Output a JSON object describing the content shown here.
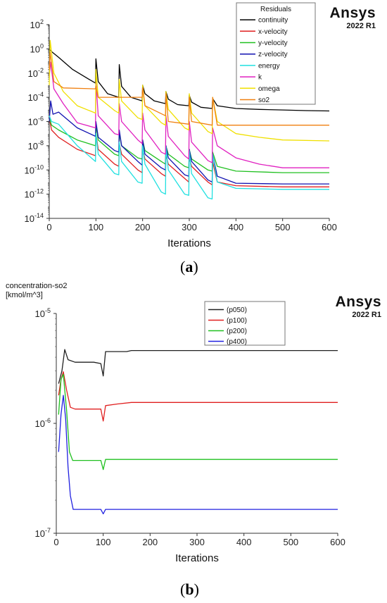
{
  "chart_data": [
    {
      "type": "line",
      "title": "",
      "xlabel": "Iterations",
      "ylabel": "",
      "yscale": "log",
      "xlim": [
        0,
        600
      ],
      "ylim": [
        1e-14,
        100
      ],
      "xticks": [
        "0",
        "100",
        "200",
        "300",
        "400",
        "500",
        "600"
      ],
      "yticks": [
        {
          "base": "10",
          "exp": "2"
        },
        {
          "base": "10",
          "exp": "0"
        },
        {
          "base": "10",
          "exp": "-2"
        },
        {
          "base": "10",
          "exp": "-4"
        },
        {
          "base": "10",
          "exp": "-6"
        },
        {
          "base": "10",
          "exp": "-8"
        },
        {
          "base": "10",
          "exp": "-10"
        },
        {
          "base": "10",
          "exp": "-12"
        },
        {
          "base": "10",
          "exp": "-14"
        }
      ],
      "legend_title": "Residuals",
      "legend_position": "top-right",
      "brand": {
        "name": "Ansys",
        "version": "2022 R1"
      },
      "series": [
        {
          "name": "continuity",
          "color": "#000000",
          "x": [
            0,
            5,
            20,
            50,
            80,
            99,
            100,
            105,
            125,
            149,
            150,
            155,
            175,
            199,
            200,
            205,
            225,
            249,
            250,
            255,
            275,
            299,
            300,
            305,
            325,
            349,
            350,
            360,
            400,
            450,
            500,
            550,
            600
          ],
          "y": [
            1,
            0.6,
            0.2,
            0.02,
            0.004,
            0.0015,
            0.15,
            0.002,
            0.0002,
            0.0001,
            0.05,
            0.0008,
            0.0001,
            5e-05,
            0.001,
            0.0002,
            5e-05,
            3e-05,
            0.0003,
            7e-05,
            2.5e-05,
            2e-05,
            0.00015,
            4e-05,
            1.5e-05,
            1.2e-05,
            8e-05,
            2e-05,
            1.2e-05,
            1e-05,
            9e-06,
            8e-06,
            7.5e-06
          ]
        },
        {
          "name": "x-velocity",
          "color": "#e02020",
          "x": [
            0,
            5,
            20,
            60,
            99,
            100,
            105,
            140,
            149,
            150,
            155,
            190,
            199,
            200,
            205,
            240,
            249,
            250,
            255,
            290,
            299,
            300,
            305,
            340,
            349,
            350,
            360,
            400,
            500,
            600
          ],
          "y": [
            2e-06,
            2e-07,
            5e-08,
            5e-09,
            1.5e-09,
            1e-07,
            5e-09,
            3e-10,
            2e-10,
            1.5e-08,
            2e-09,
            1e-10,
            6e-11,
            5e-09,
            8e-10,
            5e-11,
            3e-11,
            2e-09,
            3e-10,
            2e-11,
            1e-11,
            1e-09,
            2e-10,
            1e-11,
            6e-12,
            5e-10,
            1e-11,
            5e-12,
            4e-12,
            4e-12
          ]
        },
        {
          "name": "y-velocity",
          "color": "#20c020",
          "x": [
            0,
            5,
            20,
            60,
            99,
            100,
            105,
            140,
            149,
            150,
            155,
            190,
            199,
            200,
            205,
            240,
            249,
            250,
            255,
            290,
            299,
            300,
            305,
            340,
            349,
            350,
            360,
            400,
            500,
            600
          ],
          "y": [
            2e-06,
            5e-07,
            2e-07,
            3e-08,
            1e-08,
            5e-07,
            3e-08,
            2e-09,
            1.5e-09,
            1e-07,
            1e-08,
            1e-09,
            8e-10,
            3e-08,
            4e-09,
            5e-10,
            3e-10,
            1e-08,
            2e-09,
            2e-10,
            1.5e-10,
            5e-09,
            8e-10,
            1e-10,
            8e-11,
            3e-09,
            2e-10,
            8e-11,
            6e-11,
            6e-11
          ]
        },
        {
          "name": "z-velocity",
          "color": "#1010b0",
          "x": [
            0,
            3,
            8,
            20,
            60,
            99,
            100,
            105,
            140,
            149,
            150,
            155,
            190,
            199,
            200,
            205,
            240,
            249,
            250,
            255,
            290,
            299,
            300,
            305,
            340,
            349,
            350,
            360,
            400,
            500,
            600
          ],
          "y": [
            1e-06,
            5e-05,
            4e-06,
            6e-06,
            3e-07,
            6e-08,
            1e-06,
            5e-08,
            4e-09,
            3e-09,
            2e-07,
            1e-08,
            5e-10,
            2.5e-10,
            3e-08,
            2e-09,
            1.5e-10,
            1e-10,
            1e-08,
            1e-09,
            4e-11,
            3e-11,
            5e-09,
            5e-10,
            1.5e-11,
            1e-11,
            2e-09,
            3e-11,
            8e-12,
            7e-12,
            7e-12
          ]
        },
        {
          "name": "energy",
          "color": "#20e0e0",
          "x": [
            0,
            5,
            20,
            60,
            99,
            100,
            105,
            140,
            149,
            150,
            155,
            190,
            199,
            200,
            205,
            240,
            249,
            250,
            255,
            290,
            299,
            300,
            305,
            340,
            349,
            350,
            360,
            400,
            500,
            600
          ],
          "y": [
            3e-06,
            1e-06,
            6e-07,
            1e-08,
            5e-10,
            1e-07,
            2e-09,
            5e-11,
            4e-11,
            2e-08,
            5e-10,
            1e-11,
            8e-12,
            1e-08,
            3e-10,
            1.5e-12,
            1e-12,
            8e-09,
            1e-10,
            1e-12,
            8e-13,
            4e-09,
            5e-11,
            5e-13,
            4e-13,
            2e-09,
            1e-11,
            3e-12,
            2.5e-12,
            2.5e-12
          ]
        },
        {
          "name": "k",
          "color": "#e020c0",
          "x": [
            0,
            3,
            10,
            30,
            60,
            99,
            100,
            105,
            140,
            149,
            150,
            155,
            190,
            199,
            200,
            205,
            240,
            249,
            250,
            255,
            290,
            299,
            300,
            305,
            340,
            349,
            350,
            360,
            400,
            450,
            500,
            600
          ],
          "y": [
            0.005,
            0.08,
            0.0005,
            3e-05,
            8e-07,
            3e-07,
            0.002,
            3e-06,
            1e-07,
            8e-08,
            3e-05,
            1e-06,
            3e-08,
            1.5e-08,
            5e-06,
            2e-07,
            3e-09,
            2e-09,
            3e-06,
            6e-08,
            1.5e-09,
            8e-10,
            1e-06,
            2e-08,
            6e-10,
            4e-10,
            3e-07,
            1e-08,
            1e-09,
            3e-10,
            1.5e-10,
            1.5e-10
          ]
        },
        {
          "name": "omega",
          "color": "#f0e000",
          "x": [
            0,
            2,
            10,
            30,
            60,
            99,
            100,
            105,
            140,
            149,
            150,
            155,
            190,
            199,
            200,
            205,
            240,
            249,
            250,
            255,
            290,
            299,
            300,
            305,
            340,
            349,
            350,
            360,
            400,
            450,
            500,
            600
          ],
          "y": [
            0.001,
            5,
            0.01,
            0.0003,
            2e-05,
            5e-06,
            0.02,
            0.0001,
            8e-06,
            5e-06,
            0.003,
            5e-05,
            2e-06,
            1.5e-06,
            0.001,
            2e-05,
            8e-07,
            5e-07,
            0.0003,
            1e-05,
            3e-07,
            2e-07,
            0.0002,
            5e-06,
            1.5e-07,
            1e-07,
            0.0001,
            1e-06,
            1e-07,
            5e-08,
            3e-08,
            2.5e-08
          ]
        },
        {
          "name": "so2",
          "color": "#f08010",
          "x": [
            0,
            2,
            10,
            30,
            99,
            100,
            105,
            149,
            150,
            155,
            199,
            200,
            205,
            249,
            250,
            255,
            299,
            300,
            305,
            349,
            350,
            360,
            400,
            500,
            600
          ],
          "y": [
            0.02,
            0.5,
            0.002,
            0.0006,
            0.0005,
            0.0008,
            0.0001,
            0.0001,
            0.0001,
            0.0001,
            0.0001,
            0.0006,
            2e-05,
            3e-06,
            0.0002,
            1e-06,
            6e-07,
            0.0001,
            1e-06,
            5e-07,
            0.0001,
            5e-07,
            5e-07,
            5e-07,
            5e-07
          ]
        }
      ]
    },
    {
      "type": "line",
      "title": "",
      "xlabel": "Iterations",
      "ylabel": "concentration-so2\n[kmol/m^3]",
      "yscale": "log",
      "xlim": [
        0,
        600
      ],
      "ylim": [
        1e-07,
        1e-05
      ],
      "xticks": [
        "0",
        "100",
        "200",
        "300",
        "400",
        "500",
        "600"
      ],
      "yticks": [
        {
          "base": "10",
          "exp": "-5"
        },
        {
          "base": "10",
          "exp": "-6"
        },
        {
          "base": "10",
          "exp": "-7"
        }
      ],
      "legend_position": "top-right",
      "brand": {
        "name": "Ansys",
        "version": "2022 R1"
      },
      "series": [
        {
          "name": "(p050)",
          "color": "#202020",
          "x": [
            5,
            12,
            18,
            25,
            40,
            60,
            80,
            95,
            100,
            105,
            150,
            160,
            200,
            600
          ],
          "y": [
            2.3e-06,
            3e-06,
            4.7e-06,
            3.8e-06,
            3.6e-06,
            3.6e-06,
            3.6e-06,
            3.5e-06,
            2.7e-06,
            4.5e-06,
            4.5e-06,
            4.6e-06,
            4.6e-06,
            4.6e-06
          ]
        },
        {
          "name": "(p100)",
          "color": "#e02020",
          "x": [
            5,
            10,
            15,
            22,
            30,
            40,
            60,
            95,
            100,
            105,
            130,
            160,
            600
          ],
          "y": [
            1.8e-06,
            2.5e-06,
            2.95e-06,
            2e-06,
            1.4e-06,
            1.35e-06,
            1.35e-06,
            1.35e-06,
            1.05e-06,
            1.45e-06,
            1.5e-06,
            1.55e-06,
            1.55e-06
          ]
        },
        {
          "name": "(p200)",
          "color": "#20c020",
          "x": [
            5,
            10,
            15,
            22,
            28,
            35,
            60,
            95,
            100,
            105,
            130,
            600
          ],
          "y": [
            1.2e-06,
            2.5e-06,
            2.8e-06,
            1.3e-06,
            5.5e-07,
            4.6e-07,
            4.6e-07,
            4.6e-07,
            3.8e-07,
            4.7e-07,
            4.7e-07,
            4.7e-07
          ]
        },
        {
          "name": "(p400)",
          "color": "#2020e0",
          "x": [
            5,
            10,
            15,
            20,
            25,
            30,
            36,
            60,
            95,
            100,
            105,
            130,
            600
          ],
          "y": [
            5.5e-07,
            1.2e-06,
            1.8e-06,
            1.1e-06,
            4e-07,
            2.2e-07,
            1.65e-07,
            1.65e-07,
            1.65e-07,
            1.5e-07,
            1.65e-07,
            1.65e-07,
            1.65e-07
          ]
        }
      ]
    }
  ],
  "panel_labels": [
    "a",
    "b"
  ]
}
